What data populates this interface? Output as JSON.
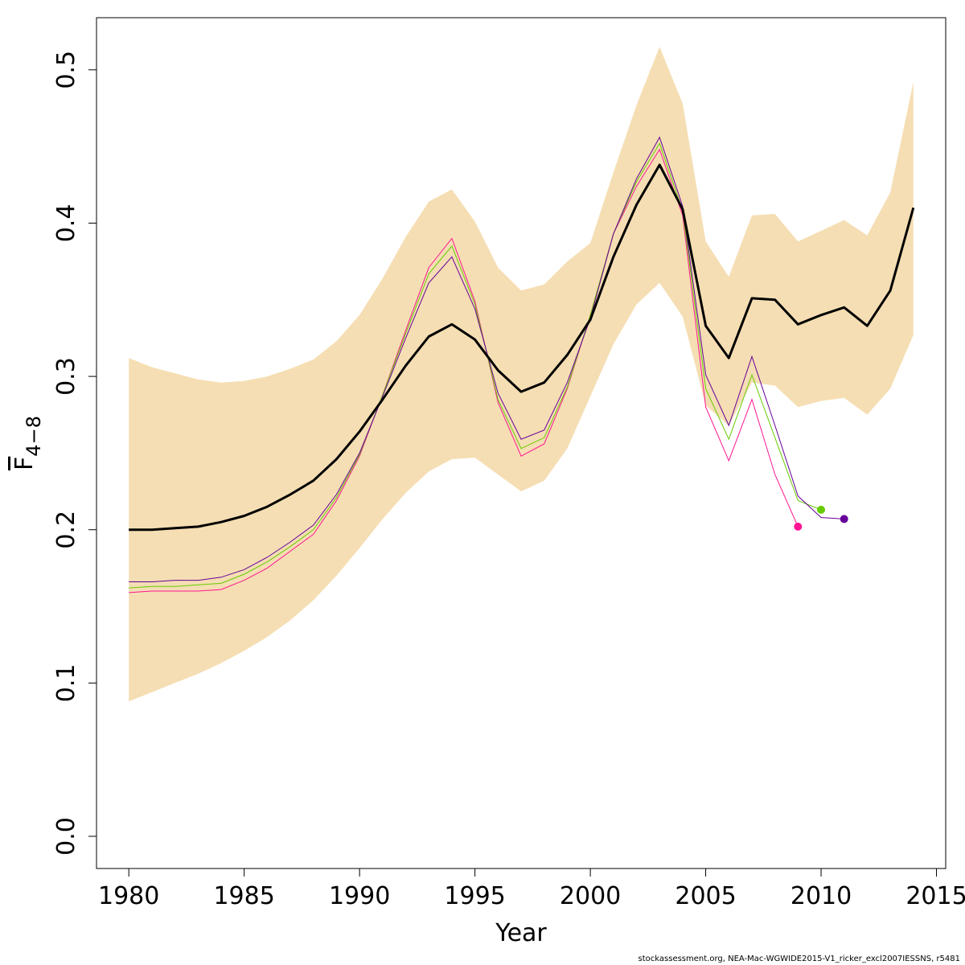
{
  "chart_data": {
    "type": "line",
    "title": "",
    "xlabel": "Year",
    "ylabel": "F",
    "ylabel_subscript": "4−8",
    "xlim": [
      1978.6,
      2015.4
    ],
    "ylim": [
      -0.021,
      0.534
    ],
    "x_ticks": [
      1980,
      1985,
      1990,
      1995,
      2000,
      2005,
      2010,
      2015
    ],
    "y_ticks": [
      0.0,
      0.1,
      0.2,
      0.3,
      0.4,
      0.5
    ],
    "y_tick_labels": [
      "0.0",
      "0.1",
      "0.2",
      "0.3",
      "0.4",
      "0.5"
    ],
    "grid": false,
    "legend": "none",
    "band": {
      "color": "#f5deb3",
      "x": [
        1980,
        1981,
        1982,
        1983,
        1984,
        1985,
        1986,
        1987,
        1988,
        1989,
        1990,
        1991,
        1992,
        1993,
        1994,
        1995,
        1996,
        1997,
        1998,
        1999,
        2000,
        2001,
        2002,
        2003,
        2004,
        2005,
        2006,
        2007,
        2008,
        2009,
        2010,
        2011,
        2012,
        2013,
        2014
      ],
      "lower": [
        0.088,
        0.094,
        0.1,
        0.106,
        0.113,
        0.121,
        0.13,
        0.141,
        0.154,
        0.17,
        0.188,
        0.207,
        0.224,
        0.238,
        0.246,
        0.247,
        0.236,
        0.225,
        0.232,
        0.253,
        0.287,
        0.321,
        0.347,
        0.361,
        0.339,
        0.281,
        0.268,
        0.296,
        0.294,
        0.28,
        0.284,
        0.286,
        0.275,
        0.292,
        0.327
      ],
      "upper": [
        0.312,
        0.306,
        0.302,
        0.298,
        0.296,
        0.297,
        0.3,
        0.305,
        0.311,
        0.323,
        0.34,
        0.364,
        0.391,
        0.414,
        0.422,
        0.401,
        0.371,
        0.356,
        0.36,
        0.375,
        0.387,
        0.433,
        0.477,
        0.515,
        0.478,
        0.388,
        0.365,
        0.405,
        0.406,
        0.388,
        0.395,
        0.402,
        0.392,
        0.42,
        0.492
      ]
    },
    "main_series": {
      "color": "#000000",
      "x": [
        1980,
        1981,
        1982,
        1983,
        1984,
        1985,
        1986,
        1987,
        1988,
        1989,
        1990,
        1991,
        1992,
        1993,
        1994,
        1995,
        1996,
        1997,
        1998,
        1999,
        2000,
        2001,
        2002,
        2003,
        2004,
        2005,
        2006,
        2007,
        2008,
        2009,
        2010,
        2011,
        2012,
        2013,
        2014
      ],
      "values": [
        0.2,
        0.2,
        0.201,
        0.202,
        0.205,
        0.209,
        0.215,
        0.223,
        0.232,
        0.246,
        0.264,
        0.285,
        0.307,
        0.326,
        0.334,
        0.324,
        0.304,
        0.29,
        0.296,
        0.314,
        0.337,
        0.378,
        0.412,
        0.438,
        0.409,
        0.333,
        0.312,
        0.351,
        0.35,
        0.334,
        0.34,
        0.345,
        0.333,
        0.356,
        0.41
      ]
    },
    "retro_series": [
      {
        "color": "#ff1493",
        "x": [
          1980,
          1981,
          1982,
          1983,
          1984,
          1985,
          1986,
          1987,
          1988,
          1989,
          1990,
          1991,
          1992,
          1993,
          1994,
          1995,
          1996,
          1997,
          1998,
          1999,
          2000,
          2001,
          2002,
          2003,
          2004,
          2005,
          2006,
          2007,
          2008,
          2009
        ],
        "values": [
          0.159,
          0.16,
          0.16,
          0.16,
          0.161,
          0.167,
          0.175,
          0.186,
          0.197,
          0.219,
          0.248,
          0.288,
          0.33,
          0.371,
          0.39,
          0.349,
          0.283,
          0.248,
          0.256,
          0.292,
          0.34,
          0.393,
          0.424,
          0.448,
          0.405,
          0.28,
          0.245,
          0.285,
          0.236,
          0.202
        ]
      },
      {
        "color": "#66cc00",
        "x": [
          1980,
          1981,
          1982,
          1983,
          1984,
          1985,
          1986,
          1987,
          1988,
          1989,
          1990,
          1991,
          1992,
          1993,
          1994,
          1995,
          1996,
          1997,
          1998,
          1999,
          2000,
          2001,
          2002,
          2003,
          2004,
          2005,
          2006,
          2007,
          2008,
          2009,
          2010
        ],
        "values": [
          0.162,
          0.163,
          0.163,
          0.164,
          0.165,
          0.171,
          0.179,
          0.189,
          0.2,
          0.221,
          0.249,
          0.288,
          0.328,
          0.367,
          0.385,
          0.347,
          0.285,
          0.253,
          0.26,
          0.293,
          0.34,
          0.393,
          0.427,
          0.452,
          0.408,
          0.292,
          0.259,
          0.301,
          0.26,
          0.219,
          0.213
        ]
      },
      {
        "color": "#660099",
        "x": [
          1980,
          1981,
          1982,
          1983,
          1984,
          1985,
          1986,
          1987,
          1988,
          1989,
          1990,
          1991,
          1992,
          1993,
          1994,
          1995,
          1996,
          1997,
          1998,
          1999,
          2000,
          2001,
          2002,
          2003,
          2004,
          2005,
          2006,
          2007,
          2008,
          2009,
          2010,
          2011
        ],
        "values": [
          0.166,
          0.166,
          0.167,
          0.167,
          0.169,
          0.174,
          0.182,
          0.192,
          0.203,
          0.223,
          0.25,
          0.287,
          0.325,
          0.361,
          0.378,
          0.344,
          0.289,
          0.259,
          0.265,
          0.296,
          0.338,
          0.393,
          0.429,
          0.456,
          0.411,
          0.301,
          0.268,
          0.313,
          0.268,
          0.222,
          0.208,
          0.207
        ]
      }
    ]
  },
  "footer_text": "stockassessment.org, NEA-Mac-WGWIDE2015-V1_ricker_excl2007IESSNS, r5481"
}
